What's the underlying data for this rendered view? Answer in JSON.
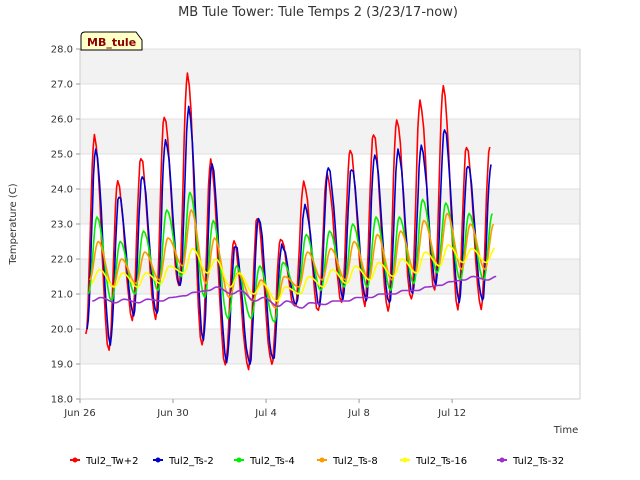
{
  "chart_data": {
    "type": "line",
    "title": "MB Tule Tower: Tule Temps 2 (3/23/17-now)",
    "badge": "MB_tule",
    "xlabel": "Time",
    "ylabel": "Temperature (C)",
    "ylim": [
      18.0,
      28.0
    ],
    "yticks": [
      "18.0",
      "19.0",
      "20.0",
      "21.0",
      "22.0",
      "23.0",
      "24.0",
      "25.0",
      "26.0",
      "27.0",
      "28.0"
    ],
    "xlim_days": [
      0,
      21.5
    ],
    "xticks": [
      {
        "label": "Jun 26",
        "day": 0
      },
      {
        "label": "Jun 30",
        "day": 4
      },
      {
        "label": "Jul 4",
        "day": 8
      },
      {
        "label": "Jul 8",
        "day": 12
      },
      {
        "label": "Jul 12",
        "day": 16
      }
    ],
    "x_start": "Jun 26",
    "legend_position": "bottom",
    "grid": true,
    "days": [
      0,
      1,
      2,
      3,
      4,
      5,
      6,
      7,
      8,
      9,
      10,
      11,
      12,
      13,
      14,
      15,
      16,
      17
    ],
    "series": [
      {
        "name": "Tul2_Tw+2",
        "color": "#ff0000",
        "max": [
          25.5,
          24.2,
          24.9,
          26.1,
          27.3,
          24.8,
          22.5,
          23.2,
          22.6,
          24.2,
          24.4,
          25.1,
          25.6,
          26.0,
          26.5,
          26.9,
          25.2,
          25.2
        ],
        "min": [
          19.8,
          19.4,
          20.3,
          20.3,
          21.2,
          19.5,
          19.0,
          18.9,
          19.0,
          20.6,
          20.5,
          20.8,
          20.7,
          20.5,
          20.8,
          21.1,
          20.6,
          20.6
        ]
      },
      {
        "name": "Tul2_Ts-2",
        "color": "#0000cc",
        "max": [
          25.1,
          23.8,
          24.4,
          25.4,
          26.3,
          24.7,
          22.4,
          23.2,
          22.4,
          23.5,
          24.6,
          24.6,
          25.0,
          25.1,
          25.2,
          25.7,
          24.7,
          24.7
        ],
        "min": [
          20.0,
          19.6,
          20.4,
          20.4,
          21.2,
          19.7,
          19.1,
          19.0,
          19.1,
          20.7,
          20.7,
          20.9,
          20.8,
          20.7,
          21.0,
          21.3,
          20.8,
          20.8
        ]
      },
      {
        "name": "Tul2_Ts-4",
        "color": "#00ee00",
        "max": [
          23.2,
          22.5,
          22.8,
          23.4,
          23.9,
          23.1,
          21.8,
          21.8,
          21.9,
          22.7,
          22.8,
          23.0,
          23.2,
          23.2,
          23.7,
          23.6,
          23.3,
          23.3
        ],
        "min": [
          21.0,
          20.8,
          21.0,
          21.1,
          21.5,
          20.9,
          20.3,
          20.3,
          20.2,
          21.0,
          21.1,
          21.2,
          21.2,
          21.1,
          21.3,
          21.6,
          21.4,
          21.4
        ]
      },
      {
        "name": "Tul2_Ts-8",
        "color": "#ff9900",
        "max": [
          22.5,
          22.0,
          22.2,
          22.6,
          23.4,
          22.6,
          21.6,
          21.4,
          21.5,
          22.2,
          22.3,
          22.5,
          22.7,
          22.8,
          23.1,
          23.3,
          23.0,
          23.0
        ],
        "min": [
          21.4,
          21.2,
          21.3,
          21.4,
          21.8,
          21.3,
          20.9,
          20.8,
          20.6,
          21.2,
          21.4,
          21.4,
          21.4,
          21.4,
          21.6,
          21.8,
          21.7,
          21.7
        ]
      },
      {
        "name": "Tul2_Ts-16",
        "color": "#ffff00",
        "max": [
          21.7,
          21.6,
          21.6,
          21.8,
          22.3,
          22.0,
          21.6,
          21.3,
          21.2,
          21.5,
          21.7,
          21.8,
          21.9,
          22.0,
          22.2,
          22.4,
          22.3,
          22.3
        ],
        "min": [
          21.3,
          21.2,
          21.2,
          21.3,
          21.6,
          21.6,
          21.2,
          21.0,
          20.8,
          21.0,
          21.2,
          21.3,
          21.4,
          21.5,
          21.6,
          21.8,
          21.9,
          21.9
        ]
      },
      {
        "name": "Tul2_Ts-32",
        "color": "#9933cc",
        "max": [
          20.9,
          20.85,
          20.85,
          20.9,
          21.05,
          21.2,
          21.1,
          20.9,
          20.8,
          20.75,
          20.8,
          20.9,
          21.0,
          21.1,
          21.2,
          21.35,
          21.5,
          21.5
        ],
        "min": [
          20.8,
          20.75,
          20.75,
          20.8,
          20.95,
          21.1,
          21.0,
          20.8,
          20.65,
          20.6,
          20.7,
          20.8,
          20.9,
          21.0,
          21.1,
          21.25,
          21.4,
          21.4
        ]
      }
    ]
  }
}
